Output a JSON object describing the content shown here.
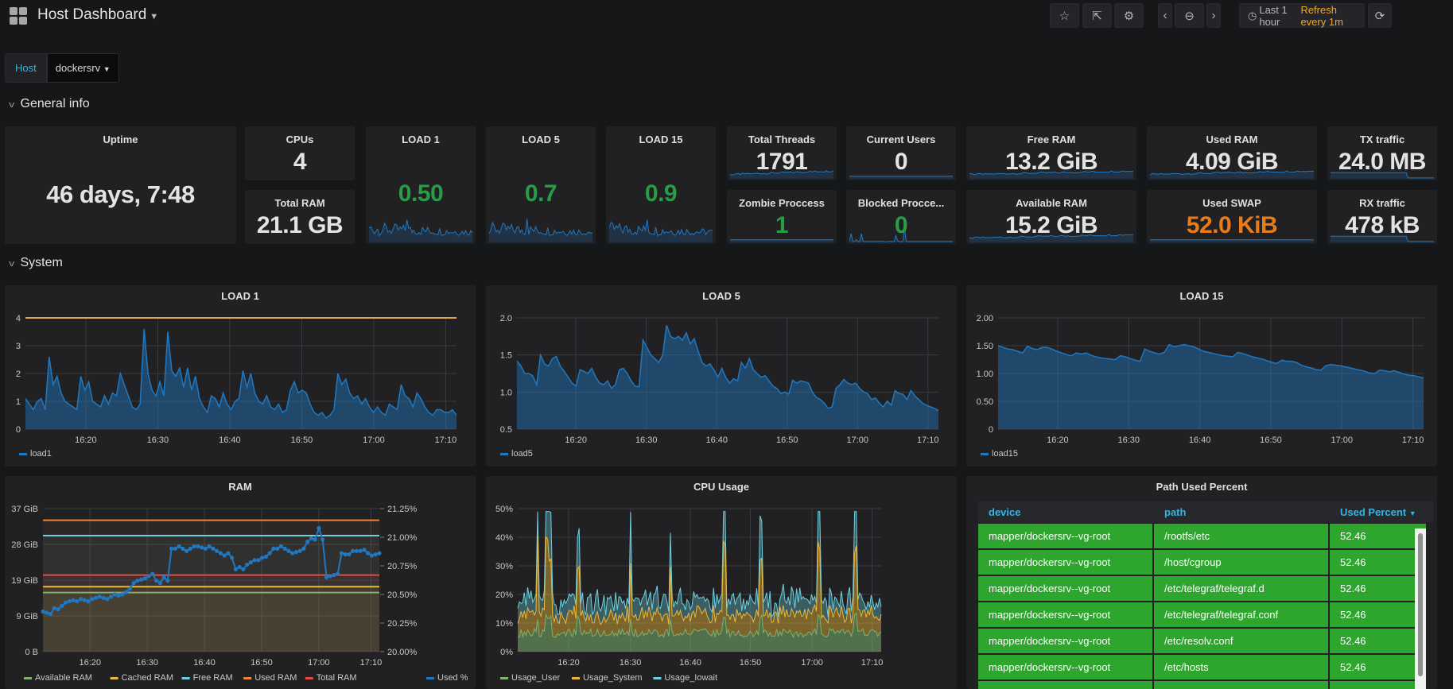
{
  "header": {
    "title": "Host Dashboard",
    "time_range": "Last 1 hour",
    "refresh": "Refresh every 1m",
    "buttons": [
      "star-icon",
      "share-icon",
      "gear-icon",
      "chevron-left-icon",
      "zoom-out-icon",
      "chevron-right-icon",
      "refresh-icon"
    ]
  },
  "variables": {
    "label": "Host",
    "value": "dockersrv"
  },
  "rows": {
    "general": "General info",
    "system": "System"
  },
  "stats": {
    "uptime": {
      "title": "Uptime",
      "value": "46 days, 7:48"
    },
    "cpus": {
      "title": "CPUs",
      "value": "4"
    },
    "total_ram": {
      "title": "Total RAM",
      "value": "21.1 GB"
    },
    "load1": {
      "title": "LOAD 1",
      "value": "0.50"
    },
    "load5": {
      "title": "LOAD 5",
      "value": "0.7"
    },
    "load15": {
      "title": "LOAD 15",
      "value": "0.9"
    },
    "threads": {
      "title": "Total Threads",
      "value": "1791"
    },
    "zombie": {
      "title": "Zombie Proccess",
      "value": "1"
    },
    "users": {
      "title": "Current Users",
      "value": "0"
    },
    "blocked": {
      "title": "Blocked Procce...",
      "value": "0"
    },
    "free_ram": {
      "title": "Free RAM",
      "value": "13.2 GiB"
    },
    "avail_ram": {
      "title": "Available RAM",
      "value": "15.2 GiB"
    },
    "used_ram": {
      "title": "Used RAM",
      "value": "4.09 GiB"
    },
    "used_swap": {
      "title": "Used SWAP",
      "value": "52.0 KiB"
    },
    "tx": {
      "title": "TX traffic",
      "value": "24.0 MB"
    },
    "rx": {
      "title": "RX traffic",
      "value": "478 kB"
    }
  },
  "chart_data": [
    {
      "id": "load1",
      "type": "area",
      "title": "LOAD 1",
      "x": [
        "16:20",
        "16:30",
        "16:40",
        "16:50",
        "17:00",
        "17:10"
      ],
      "ylim": [
        0,
        4
      ],
      "yticks": [
        "0",
        "1",
        "2",
        "3",
        "4"
      ],
      "threshold": 4,
      "series": [
        {
          "name": "load1",
          "color": "#1f78c1",
          "values": [
            1.1,
            0.9,
            0.7,
            1.0,
            1.1,
            0.7,
            2.6,
            1.6,
            1.9,
            1.3,
            1.0,
            0.9,
            0.8,
            0.7,
            1.9,
            1.4,
            1.7,
            1.0,
            0.9,
            0.8,
            1.2,
            0.9,
            1.3,
            1.2,
            2.0,
            1.6,
            1.2,
            0.8,
            0.7,
            0.9,
            3.6,
            2.0,
            1.4,
            1.2,
            1.7,
            1.2,
            3.5,
            2.1,
            1.9,
            2.2,
            1.5,
            2.2,
            1.4,
            1.9,
            1.1,
            0.8,
            0.6,
            1.2,
            1.1,
            0.8,
            1.3,
            0.9,
            0.7,
            1.0,
            1.1,
            2.1,
            1.5,
            2.0,
            1.3,
            1.0,
            0.9,
            1.2,
            0.8,
            0.7,
            0.9,
            0.6,
            0.7,
            1.4,
            1.7,
            1.3,
            1.4,
            1.3,
            0.9,
            0.6,
            0.5,
            0.6,
            0.4,
            0.5,
            0.7,
            2.0,
            1.6,
            1.8,
            1.3,
            1.1,
            1.2,
            0.9,
            1.1,
            0.8,
            0.6,
            0.8,
            0.6,
            0.5,
            0.9,
            0.8,
            0.7,
            1.6,
            1.2,
            1.1,
            0.8,
            1.3,
            1.1,
            0.8,
            0.6,
            0.5,
            0.7,
            0.7,
            0.6,
            0.6,
            0.7,
            0.5
          ]
        }
      ]
    },
    {
      "id": "load5",
      "type": "area",
      "title": "LOAD 5",
      "x": [
        "16:20",
        "16:30",
        "16:40",
        "16:50",
        "17:00",
        "17:10"
      ],
      "ylim": [
        0.5,
        2.0
      ],
      "yticks": [
        "0.5",
        "1.0",
        "1.5",
        "2.0"
      ],
      "series": [
        {
          "name": "load5",
          "color": "#1f78c1",
          "values": [
            1.42,
            1.35,
            1.25,
            1.25,
            1.22,
            1.1,
            1.5,
            1.38,
            1.35,
            1.45,
            1.48,
            1.35,
            1.28,
            1.2,
            1.12,
            1.08,
            1.3,
            1.28,
            1.25,
            1.32,
            1.2,
            1.12,
            1.1,
            1.15,
            1.05,
            1.1,
            1.3,
            1.32,
            1.25,
            1.15,
            1.08,
            1.07,
            1.7,
            1.6,
            1.5,
            1.45,
            1.4,
            1.5,
            1.9,
            1.75,
            1.72,
            1.75,
            1.7,
            1.8,
            1.65,
            1.72,
            1.55,
            1.4,
            1.35,
            1.38,
            1.3,
            1.2,
            1.32,
            1.2,
            1.12,
            1.18,
            1.15,
            1.4,
            1.32,
            1.45,
            1.3,
            1.25,
            1.2,
            1.22,
            1.15,
            1.08,
            1.05,
            0.98,
            1.0,
            0.97,
            1.16,
            1.12,
            1.15,
            1.14,
            1.12,
            1.0,
            0.93,
            0.9,
            0.85,
            0.78,
            0.8,
            1.05,
            1.1,
            1.17,
            1.12,
            1.1,
            1.12,
            1.05,
            1.0,
            0.98,
            0.9,
            0.92,
            0.85,
            0.8,
            0.88,
            0.82,
            1.02,
            0.98,
            0.97,
            0.9,
            1.02,
            0.95,
            0.9,
            0.85,
            0.82,
            0.8,
            0.78,
            0.75
          ]
        }
      ]
    },
    {
      "id": "load15",
      "type": "area",
      "title": "LOAD 15",
      "x": [
        "16:20",
        "16:30",
        "16:40",
        "16:50",
        "17:00",
        "17:10"
      ],
      "ylim": [
        0,
        2.0
      ],
      "yticks": [
        "0",
        "0.50",
        "1.00",
        "1.50",
        "2.00"
      ],
      "series": [
        {
          "name": "load15",
          "color": "#1f78c1",
          "values": [
            1.5,
            1.47,
            1.44,
            1.43,
            1.4,
            1.37,
            1.49,
            1.45,
            1.43,
            1.47,
            1.47,
            1.44,
            1.4,
            1.37,
            1.34,
            1.32,
            1.37,
            1.35,
            1.37,
            1.33,
            1.3,
            1.28,
            1.27,
            1.26,
            1.25,
            1.32,
            1.3,
            1.27,
            1.24,
            1.22,
            1.44,
            1.4,
            1.37,
            1.35,
            1.38,
            1.52,
            1.48,
            1.5,
            1.52,
            1.5,
            1.48,
            1.44,
            1.4,
            1.38,
            1.36,
            1.34,
            1.32,
            1.31,
            1.3,
            1.38,
            1.36,
            1.33,
            1.3,
            1.28,
            1.26,
            1.23,
            1.2,
            1.18,
            1.24,
            1.22,
            1.22,
            1.2,
            1.15,
            1.12,
            1.1,
            1.07,
            1.06,
            1.14,
            1.16,
            1.15,
            1.14,
            1.12,
            1.1,
            1.08,
            1.06,
            1.04,
            1.01,
            1.0,
            1.06,
            1.05,
            1.03,
            1.05,
            1.02,
            0.99,
            0.97,
            0.96,
            0.94,
            0.92
          ]
        }
      ]
    },
    {
      "id": "ram",
      "type": "line",
      "title": "RAM",
      "x": [
        "16:20",
        "16:30",
        "16:40",
        "16:50",
        "17:00",
        "17:10"
      ],
      "ylim": [
        0,
        37
      ],
      "yticks": [
        "0 B",
        "9 GiB",
        "19 GiB",
        "28 GiB",
        "37 GiB"
      ],
      "y2lim": [
        20.0,
        21.25
      ],
      "y2ticks": [
        "20.00%",
        "20.25%",
        "20.50%",
        "20.75%",
        "21.00%",
        "21.25%"
      ],
      "series": [
        {
          "name": "Available RAM",
          "color": "#7eb26d",
          "axis": "left",
          "values_const": 15.3
        },
        {
          "name": "Cached RAM",
          "color": "#eab839",
          "axis": "left",
          "values_const": 16.8
        },
        {
          "name": "Free RAM",
          "color": "#6ed0e0",
          "axis": "left",
          "values_const": 30.0
        },
        {
          "name": "Used RAM",
          "color": "#ef843c",
          "axis": "left",
          "values_const": 34.0
        },
        {
          "name": "Total RAM",
          "color": "#e24d42",
          "axis": "left",
          "values_const": 19.8
        },
        {
          "name": "Used %",
          "color": "#1f78c1",
          "axis": "right",
          "values": [
            20.35,
            20.34,
            20.33,
            20.38,
            20.37,
            20.4,
            20.43,
            20.44,
            20.45,
            20.44,
            20.46,
            20.45,
            20.44,
            20.46,
            20.47,
            20.48,
            20.47,
            20.46,
            20.48,
            20.5,
            20.49,
            20.5,
            20.52,
            20.55,
            20.6,
            20.62,
            20.63,
            20.64,
            20.66,
            20.68,
            20.62,
            20.6,
            20.65,
            20.62,
            20.9,
            20.9,
            20.92,
            20.9,
            20.88,
            20.9,
            20.92,
            20.92,
            20.91,
            20.9,
            20.92,
            20.9,
            20.88,
            20.86,
            20.84,
            20.86,
            20.82,
            20.72,
            20.74,
            20.72,
            20.76,
            20.78,
            20.8,
            20.8,
            20.82,
            20.83,
            20.86,
            20.9,
            20.9,
            20.92,
            20.9,
            20.88,
            20.86,
            20.87,
            20.88,
            20.9,
            20.96,
            20.99,
            20.98,
            21.08,
            20.98,
            20.65,
            20.66,
            20.67,
            20.68,
            20.86,
            20.85,
            20.85,
            20.88,
            20.88,
            20.88,
            20.89,
            20.86,
            20.84,
            20.85,
            20.86
          ]
        }
      ]
    },
    {
      "id": "cpu",
      "type": "area",
      "title": "CPU Usage",
      "x": [
        "16:20",
        "16:30",
        "16:40",
        "16:50",
        "17:00",
        "17:10"
      ],
      "ylim": [
        0,
        50
      ],
      "yticks": [
        "0%",
        "10%",
        "20%",
        "30%",
        "40%",
        "50%"
      ],
      "series": [
        {
          "name": "Usage_User",
          "color": "#7eb26d"
        },
        {
          "name": "Usage_System",
          "color": "#eab839"
        },
        {
          "name": "Usage_Iowait",
          "color": "#6ed0e0"
        }
      ],
      "peaks": [
        [
          0.055,
          46
        ],
        [
          0.08,
          44
        ],
        [
          0.09,
          34
        ],
        [
          0.165,
          27
        ],
        [
          0.31,
          33
        ],
        [
          0.42,
          30
        ],
        [
          0.57,
          42
        ],
        [
          0.67,
          31
        ],
        [
          0.83,
          39
        ],
        [
          0.93,
          38
        ]
      ]
    }
  ],
  "table": {
    "title": "Path Used Percent",
    "columns": [
      "device",
      "path",
      "Used Percent"
    ],
    "rows": [
      [
        "mapper/dockersrv--vg-root",
        "/rootfs/etc",
        "52.46"
      ],
      [
        "mapper/dockersrv--vg-root",
        "/host/cgroup",
        "52.46"
      ],
      [
        "mapper/dockersrv--vg-root",
        "/etc/telegraf/telegraf.d",
        "52.46"
      ],
      [
        "mapper/dockersrv--vg-root",
        "/etc/telegraf/telegraf.conf",
        "52.46"
      ],
      [
        "mapper/dockersrv--vg-root",
        "/etc/resolv.conf",
        "52.46"
      ],
      [
        "mapper/dockersrv--vg-root",
        "/etc/hosts",
        "52.46"
      ]
    ]
  }
}
